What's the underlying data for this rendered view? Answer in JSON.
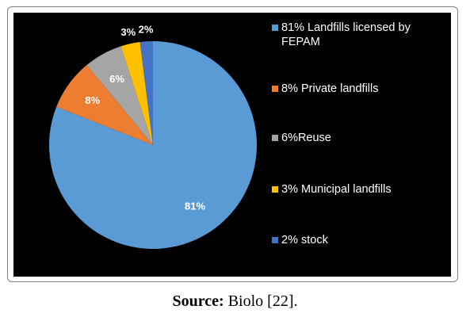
{
  "chart_data": {
    "type": "pie",
    "start_angle_deg": 0,
    "direction": "clockwise",
    "slices": [
      {
        "label": "81% Landfills licensed by FEPAM",
        "value": 81,
        "data_label": "81%",
        "color": "#5B9BD5"
      },
      {
        "label": "8% Private landfills",
        "value": 8,
        "data_label": "8%",
        "color": "#ED7D31"
      },
      {
        "label": "6%Reuse",
        "value": 6,
        "data_label": "6%",
        "color": "#A5A5A5"
      },
      {
        "label": "3% Municipal landfills",
        "value": 3,
        "data_label": "3%",
        "color": "#FFC000"
      },
      {
        "label": "2% stock",
        "value": 2,
        "data_label": "2%",
        "color": "#4472C4"
      }
    ],
    "legend_position": "right",
    "background": "#000000",
    "label_color": "#ffffff",
    "small_label_color": "#ffffff"
  },
  "caption": {
    "strong": "Source:",
    "text": " Biolo [22]."
  }
}
